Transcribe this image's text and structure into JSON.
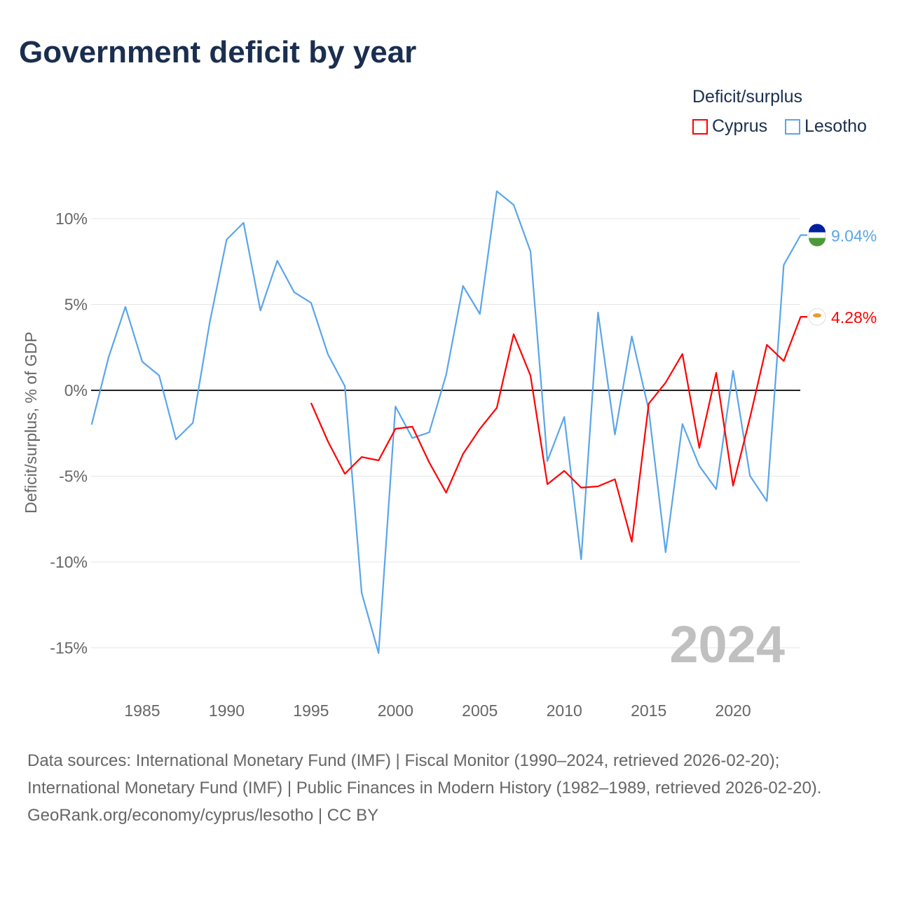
{
  "chart_data": {
    "type": "line",
    "title": "Government deficit by year",
    "xlabel": "",
    "ylabel": "Deficit/surplus, % of GDP",
    "xlim": [
      1982,
      2024
    ],
    "ylim": [
      -17,
      12
    ],
    "x_ticks": [
      1985,
      1990,
      1995,
      2000,
      2005,
      2010,
      2015,
      2020
    ],
    "y_ticks": [
      {
        "v": 10,
        "label": "10%"
      },
      {
        "v": 5,
        "label": "5%"
      },
      {
        "v": 0,
        "label": "0%"
      },
      {
        "v": -5,
        "label": "-5%"
      },
      {
        "v": -10,
        "label": "-10%"
      },
      {
        "v": -15,
        "label": "-15%"
      }
    ],
    "legend_title": "Deficit/surplus",
    "legend_placement": "top-right",
    "year_label": "2024",
    "series": [
      {
        "name": "Cyprus",
        "color": "#ff0000",
        "end_label": "4.28%",
        "start_year": 1995,
        "values": [
          -0.73,
          -2.98,
          -4.86,
          -3.88,
          -4.08,
          -2.24,
          -2.12,
          -4.2,
          -5.96,
          -3.71,
          -2.24,
          -1.02,
          3.27,
          0.86,
          -5.47,
          -4.69,
          -5.67,
          -5.59,
          -5.18,
          -8.82,
          -0.78,
          0.45,
          2.12,
          -3.35,
          1.02,
          -5.55,
          -1.59,
          2.65,
          1.71,
          4.28
        ]
      },
      {
        "name": "Lesotho",
        "color": "#5aa5ea",
        "end_label": "9.04%",
        "start_year": 1982,
        "values": [
          -2.0,
          1.9,
          4.86,
          1.67,
          0.86,
          -2.86,
          -1.9,
          3.96,
          8.78,
          9.76,
          4.65,
          7.55,
          5.71,
          5.1,
          2.1,
          0.24,
          -11.8,
          -15.3,
          -0.94,
          -2.78,
          -2.45,
          0.9,
          6.08,
          4.45,
          11.6,
          10.8,
          8.1,
          -4.12,
          -1.55,
          -9.84,
          4.53,
          -2.57,
          3.14,
          -1.14,
          -9.43,
          -1.96,
          -4.4,
          -5.76,
          1.14,
          -4.98,
          -6.45,
          7.3,
          9.04
        ]
      }
    ]
  },
  "sources": {
    "line1": "Data sources: International Monetary Fund (IMF) | Fiscal Monitor (1990–2024, retrieved 2026-02-20); International Monetary Fund (IMF) | Public Finances in Modern History (1982–1989, retrieved 2026-02-20).",
    "line2": "GeoRank.org/economy/cyprus/lesotho | CC BY"
  }
}
